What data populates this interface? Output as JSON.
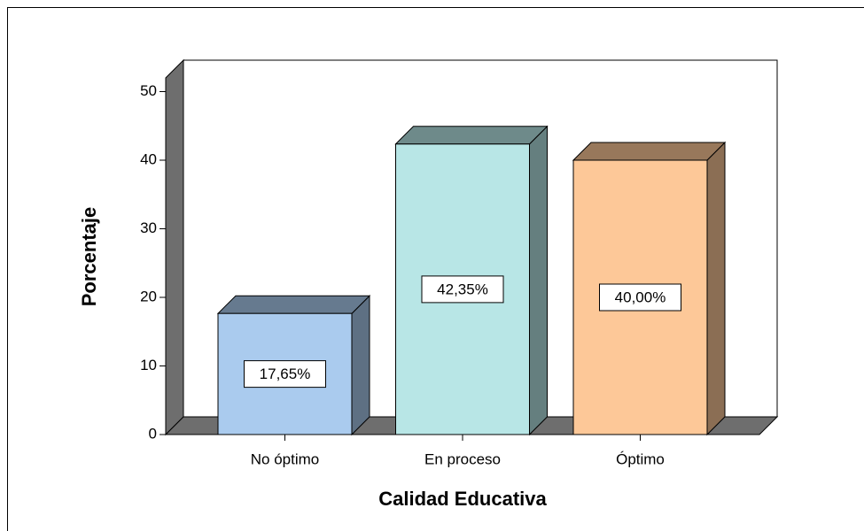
{
  "chart_data": {
    "type": "bar3d",
    "x_label": "Calidad Educativa",
    "y_label": "Porcentaje",
    "categories": [
      "No óptimo",
      "En proceso",
      "Óptimo"
    ],
    "values": [
      17.65,
      42.35,
      40.0
    ],
    "value_labels": [
      "17,65%",
      "42,35%",
      "40,00%"
    ],
    "colors": [
      "#aacbee",
      "#b8e6e6",
      "#fdc898"
    ],
    "ylim": [
      0,
      52
    ],
    "yticks": [
      0,
      10,
      20,
      30,
      40,
      50
    ]
  }
}
